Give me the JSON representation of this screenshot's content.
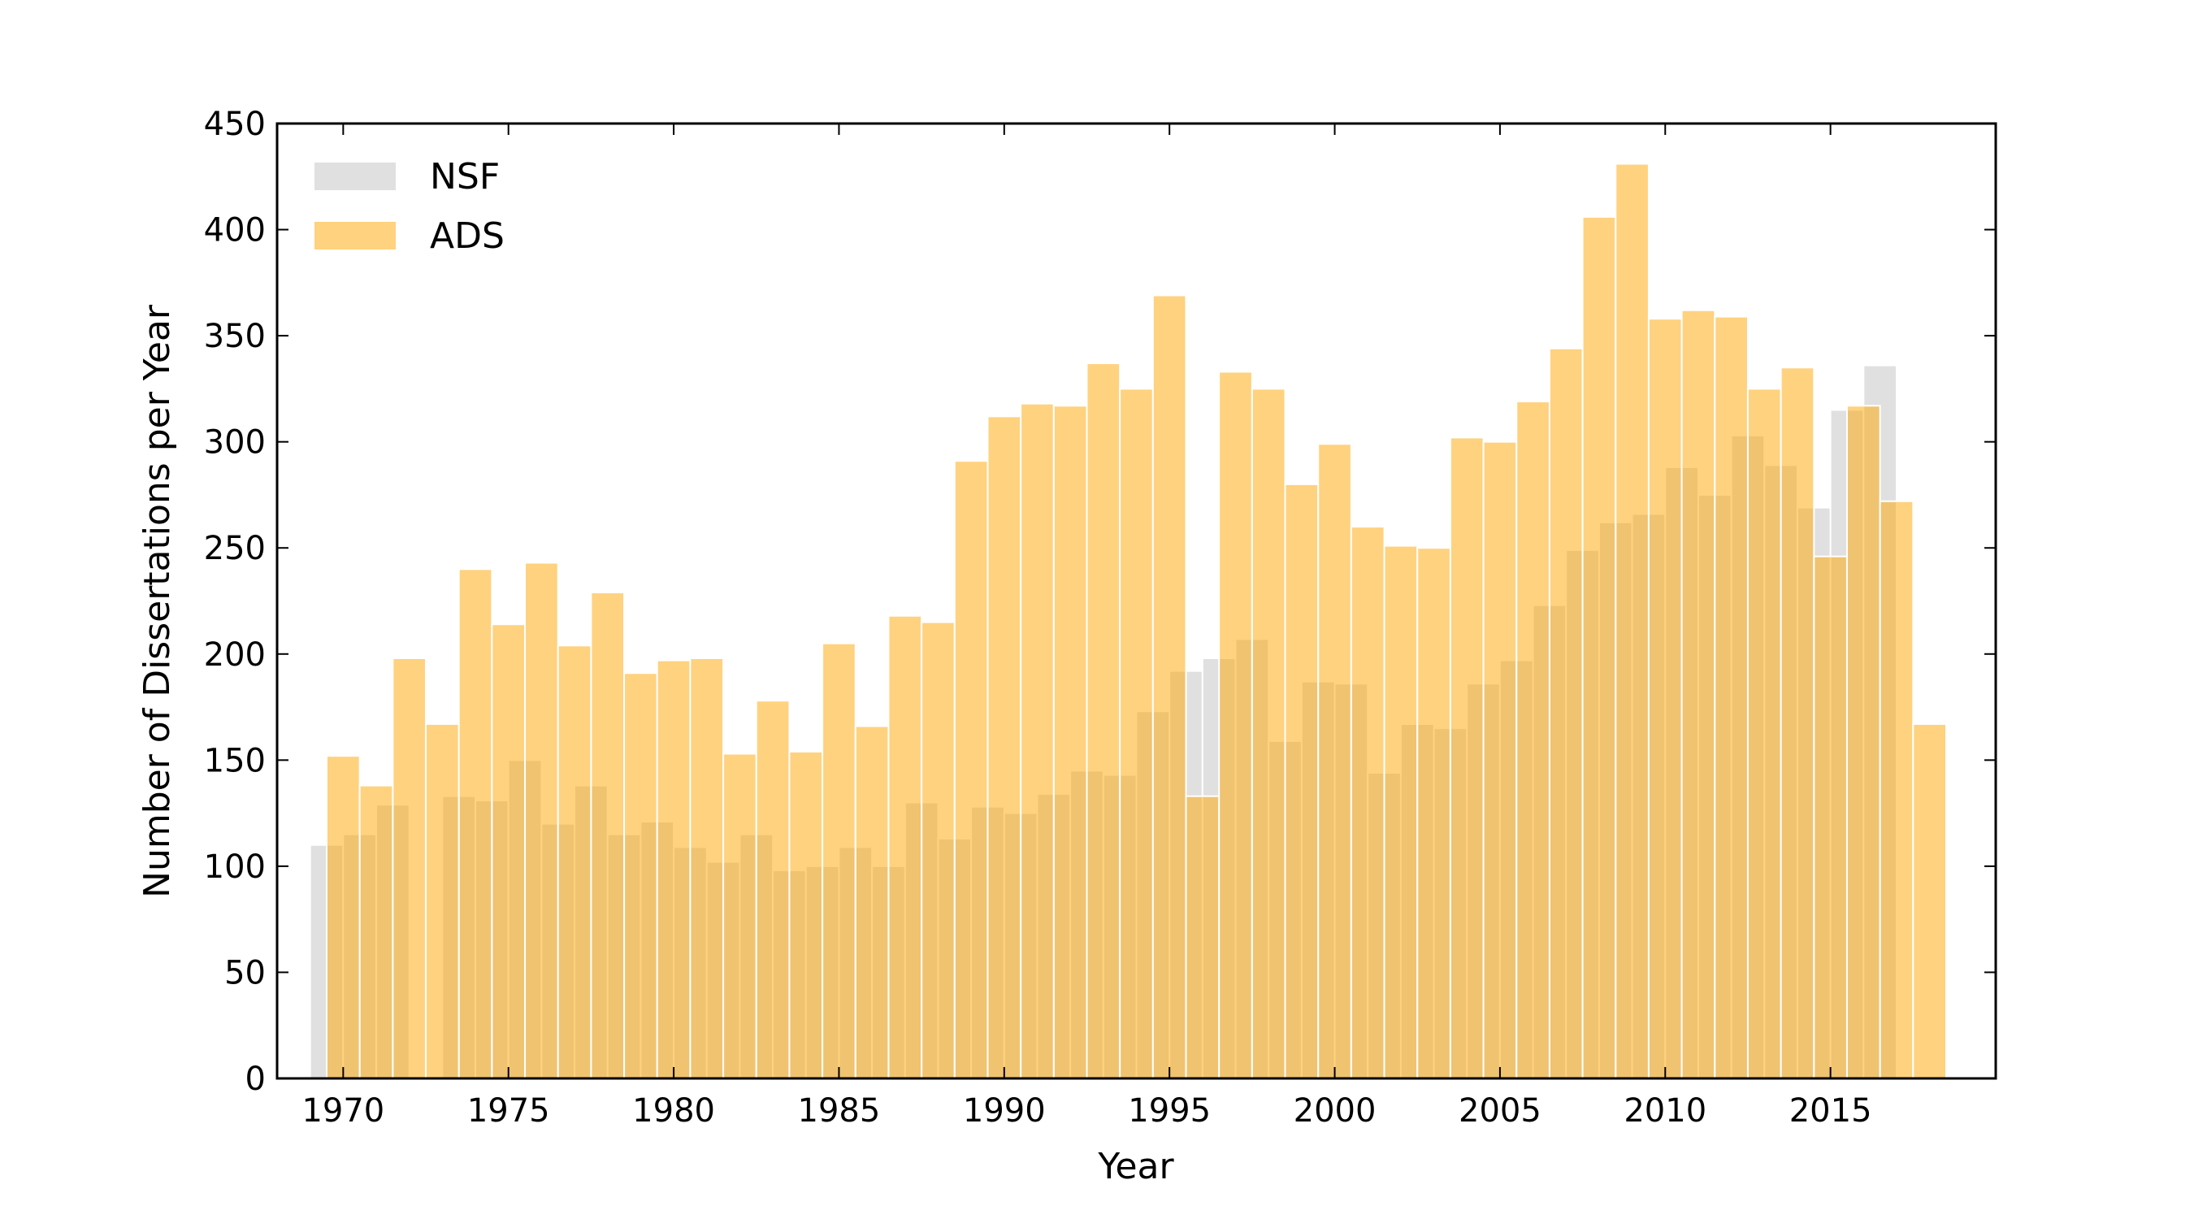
{
  "chart_data": {
    "type": "histogram",
    "xlabel": "Year",
    "ylabel": "Number of Dissertations per Year",
    "xlim": [
      1968,
      2020
    ],
    "xticks": [
      1970,
      1975,
      1980,
      1985,
      1990,
      1995,
      2000,
      2005,
      2010,
      2015
    ],
    "ylim": [
      0,
      450
    ],
    "yticks": [
      0,
      50,
      100,
      150,
      200,
      250,
      300,
      350,
      400,
      450
    ],
    "legend": "upper left",
    "series": [
      {
        "name": "NSF",
        "color": "#d3d3d3",
        "opacity": 0.7,
        "bins": [
          1969,
          1970,
          1971,
          1972,
          1973,
          1974,
          1975,
          1976,
          1977,
          1978,
          1979,
          1980,
          1981,
          1982,
          1983,
          1984,
          1985,
          1986,
          1987,
          1988,
          1989,
          1990,
          1991,
          1992,
          1993,
          1994,
          1995,
          1996,
          1997,
          1998,
          1999,
          2000,
          2001,
          2002,
          2003,
          2004,
          2005,
          2006,
          2007,
          2008,
          2009,
          2010,
          2011,
          2012,
          2013,
          2014,
          2015,
          2016,
          2017
        ],
        "values": [
          110,
          115,
          129,
          0,
          133,
          131,
          150,
          120,
          138,
          115,
          121,
          109,
          102,
          115,
          98,
          100,
          109,
          100,
          130,
          113,
          128,
          125,
          134,
          145,
          143,
          173,
          192,
          198,
          207,
          159,
          187,
          186,
          144,
          167,
          165,
          186,
          197,
          223,
          249,
          262,
          266,
          288,
          275,
          303,
          289,
          269,
          315,
          336
        ]
      },
      {
        "name": "ADS",
        "color": "#ffa500",
        "opacity": 0.5,
        "bins": [
          1969.5,
          1970.5,
          1971.5,
          1972.5,
          1973.5,
          1974.5,
          1975.5,
          1976.5,
          1977.5,
          1978.5,
          1979.5,
          1980.5,
          1981.5,
          1982.5,
          1983.5,
          1984.5,
          1985.5,
          1986.5,
          1987.5,
          1988.5,
          1989.5,
          1990.5,
          1991.5,
          1992.5,
          1993.5,
          1994.5,
          1995.5,
          1996.5,
          1997.5,
          1998.5,
          1999.5,
          2000.5,
          2001.5,
          2002.5,
          2003.5,
          2004.5,
          2005.5,
          2006.5,
          2007.5,
          2008.5,
          2009.5,
          2010.5,
          2011.5,
          2012.5,
          2013.5,
          2014.5,
          2015.5,
          2016.5,
          2017.5,
          2018.5
        ],
        "values": [
          152,
          138,
          198,
          167,
          240,
          214,
          243,
          204,
          229,
          191,
          197,
          198,
          153,
          178,
          154,
          205,
          166,
          218,
          215,
          291,
          312,
          318,
          317,
          337,
          325,
          369,
          133,
          333,
          325,
          280,
          299,
          260,
          251,
          250,
          302,
          300,
          319,
          344,
          406,
          431,
          358,
          362,
          359,
          325,
          335,
          246,
          317,
          272,
          167
        ]
      }
    ]
  }
}
